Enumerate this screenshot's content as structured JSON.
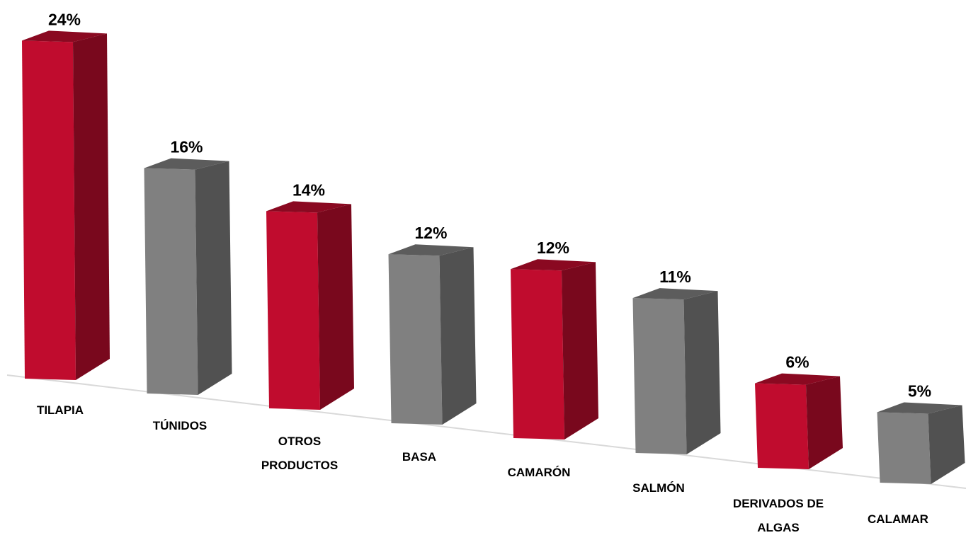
{
  "chart_data": {
    "type": "bar3d",
    "categories": [
      "TILAPIA",
      "TÚNIDOS",
      "OTROS PRODUCTOS",
      "BASA",
      "CAMARÓN",
      "SALMÓN",
      "DERIVADOS DE ALGAS",
      "CALAMAR"
    ],
    "values": [
      24,
      16,
      14,
      12,
      12,
      11,
      6,
      5
    ],
    "value_labels": [
      "24%",
      "16%",
      "14%",
      "12%",
      "12%",
      "11%",
      "6%",
      "5%"
    ],
    "colors": [
      "#c00c2e",
      "#808080",
      "#c00c2e",
      "#808080",
      "#c00c2e",
      "#808080",
      "#c00c2e",
      "#808080"
    ]
  }
}
